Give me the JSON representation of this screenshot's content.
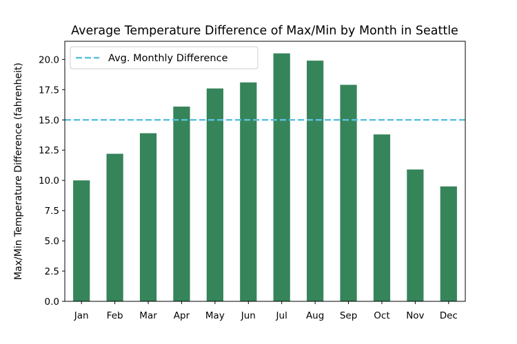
{
  "chart_data": {
    "type": "bar",
    "title": "Average Temperature Difference of Max/Min by Month in Seattle",
    "xlabel": "",
    "ylabel": "Max/Min Temperature Difference (fahrenheit)",
    "categories": [
      "Jan",
      "Feb",
      "Mar",
      "Apr",
      "May",
      "Jun",
      "Jul",
      "Aug",
      "Sep",
      "Oct",
      "Nov",
      "Dec"
    ],
    "values": [
      10.0,
      12.2,
      13.9,
      16.1,
      17.6,
      18.1,
      20.5,
      19.9,
      17.9,
      13.8,
      10.9,
      9.5
    ],
    "ylim": [
      0,
      21.5
    ],
    "yticks": [
      "0.0",
      "2.5",
      "5.0",
      "7.5",
      "10.0",
      "12.5",
      "15.0",
      "17.5",
      "20.0"
    ],
    "reference_line": {
      "label": "Avg. Monthly Difference",
      "value": 15.0,
      "style": "dashed"
    },
    "legend_position": "top-left",
    "grid": false,
    "colors": {
      "bar": "#36845a",
      "reference_line": "#5bc0de"
    }
  }
}
